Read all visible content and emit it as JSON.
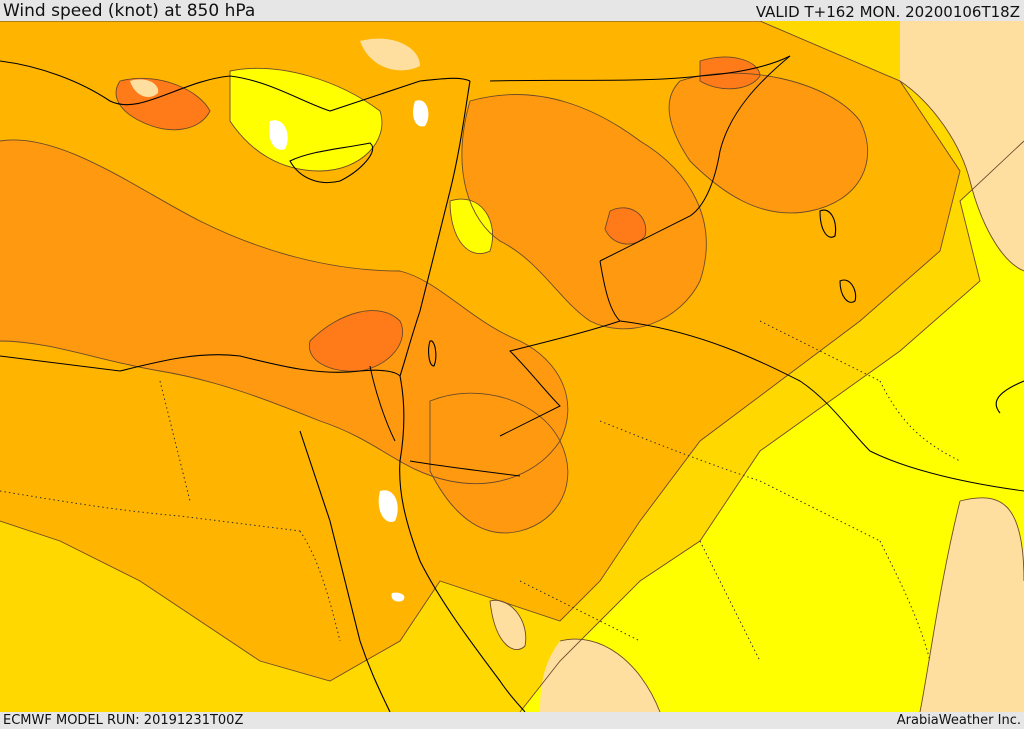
{
  "header": {
    "title": "Wind speed (knot) at 850 hPa",
    "valid_time": "VALID T+162 MON. 20200106T18Z"
  },
  "footer": {
    "model_run": "ECMWF MODEL RUN: 20191231T00Z",
    "credit": "ArabiaWeather Inc."
  },
  "map": {
    "parameter": "wind speed",
    "unit": "knot",
    "level": "850 hPa",
    "colors": {
      "lightest": "#ffffff",
      "peach": "#ffdfa0",
      "yellow": "#ffff00",
      "gold": "#ffd800",
      "amber": "#ffb400",
      "orange": "#ff9a10",
      "deep_orange": "#ff7a18",
      "contour": "#6b4a2a",
      "coastline": "#000000",
      "border": "#000000"
    }
  }
}
